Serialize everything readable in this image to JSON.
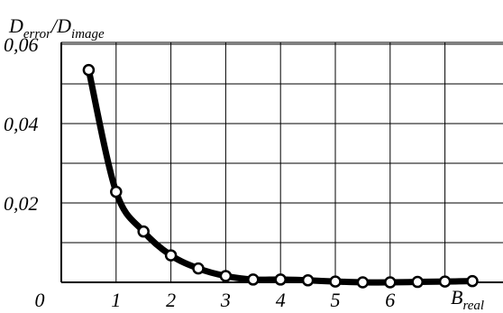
{
  "chart_data": {
    "type": "line",
    "ylabel": {
      "part1": "D",
      "sub1": "error",
      "slash": "/",
      "part2": "D",
      "sub2": "image"
    },
    "xlabel": {
      "main": "B",
      "sub": "real"
    },
    "x_ticks": [
      "0",
      "1",
      "2",
      "3",
      "4",
      "5",
      "6"
    ],
    "x_tick_values": [
      0,
      1,
      2,
      3,
      4,
      5,
      6
    ],
    "y_ticks": [
      "0,02",
      "0,04",
      "0,06"
    ],
    "y_tick_values": [
      0.02,
      0.04,
      0.06
    ],
    "xlim": [
      0,
      7.5
    ],
    "ylim": [
      0,
      0.06
    ],
    "grid": true,
    "x": [
      0.5,
      1.0,
      1.5,
      2.0,
      2.5,
      3.0,
      3.5,
      4.0,
      4.5,
      5.0,
      5.5,
      6.0,
      6.5,
      7.0,
      7.5
    ],
    "y": [
      0.0535,
      0.0228,
      0.0128,
      0.0068,
      0.0035,
      0.0016,
      0.0007,
      0.0007,
      0.0005,
      0.0002,
      0.0,
      0.0,
      0.0001,
      0.0002,
      0.0003
    ]
  }
}
